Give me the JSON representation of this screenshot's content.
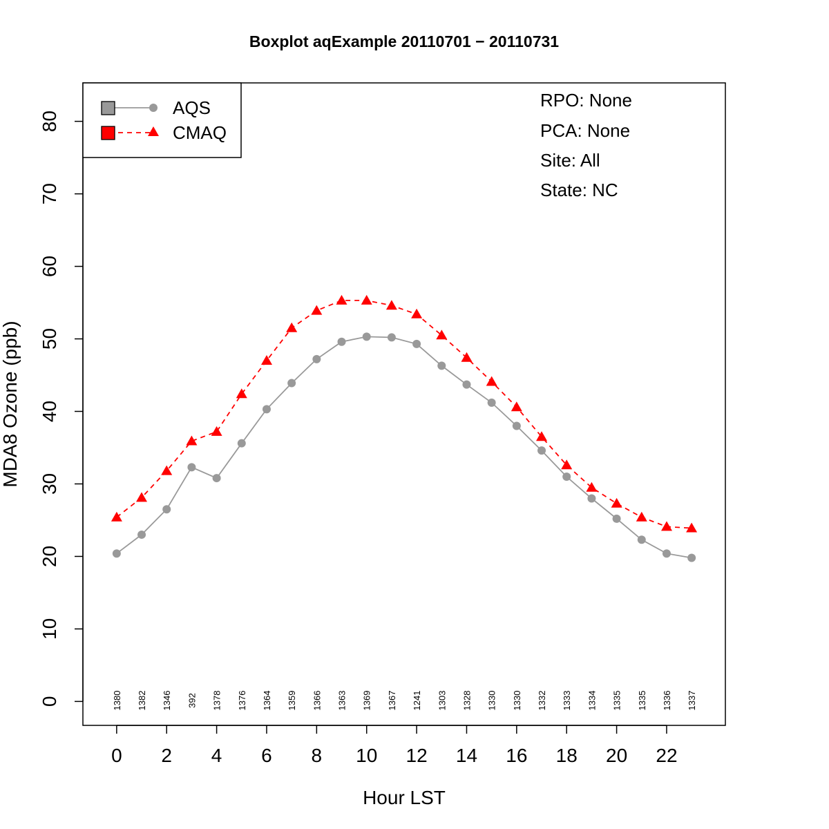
{
  "chart_data": {
    "type": "line",
    "title": "Boxplot aqExample 20110701 − 20110731",
    "xlabel": "Hour LST",
    "ylabel": "MDA8 Ozone (ppb)",
    "xlim": [
      -1.35,
      24.35
    ],
    "ylim": [
      -3.3,
      85.3
    ],
    "x_ticks": [
      "0",
      "2",
      "4",
      "6",
      "8",
      "10",
      "12",
      "14",
      "16",
      "18",
      "20",
      "22"
    ],
    "y_ticks": [
      "0",
      "10",
      "20",
      "30",
      "40",
      "50",
      "60",
      "70",
      "80"
    ],
    "x": [
      0,
      1,
      2,
      3,
      4,
      5,
      6,
      7,
      8,
      9,
      10,
      11,
      12,
      13,
      14,
      15,
      16,
      17,
      18,
      19,
      20,
      21,
      22,
      23
    ],
    "series": [
      {
        "name": "AQS",
        "color": "#999999",
        "line_style": "solid",
        "marker": "circle",
        "values": [
          20.4,
          23.0,
          26.5,
          32.3,
          30.8,
          35.6,
          40.3,
          43.9,
          47.2,
          49.6,
          50.3,
          50.2,
          49.3,
          46.3,
          43.7,
          41.2,
          38.0,
          34.6,
          31.0,
          28.0,
          25.2,
          22.3,
          20.4,
          19.8
        ]
      },
      {
        "name": "CMAQ",
        "color": "#ff0000",
        "line_style": "dashed",
        "marker": "triangle",
        "values": [
          25.4,
          28.1,
          31.8,
          35.9,
          37.2,
          42.4,
          47.0,
          51.5,
          53.9,
          55.3,
          55.3,
          54.6,
          53.4,
          50.5,
          47.4,
          44.1,
          40.6,
          36.5,
          32.6,
          29.5,
          27.3,
          25.4,
          24.1,
          23.9
        ]
      }
    ],
    "counts": [
      "1380",
      "1382",
      "1346",
      "392",
      "1378",
      "1376",
      "1364",
      "1359",
      "1366",
      "1363",
      "1369",
      "1367",
      "1241",
      "1303",
      "1328",
      "1330",
      "1330",
      "1332",
      "1333",
      "1334",
      "1335",
      "1335",
      "1336",
      "1337"
    ],
    "legend": {
      "placement": "top-left",
      "entries": [
        {
          "label": "AQS",
          "color": "#999999",
          "fill": "#999999"
        },
        {
          "label": "CMAQ",
          "color": "#ff0000",
          "fill": "#ff0000"
        }
      ]
    },
    "info": {
      "placement": "top-right",
      "lines": [
        "RPO: None",
        "PCA: None",
        "Site: All",
        "State: NC"
      ]
    },
    "grid": false
  }
}
